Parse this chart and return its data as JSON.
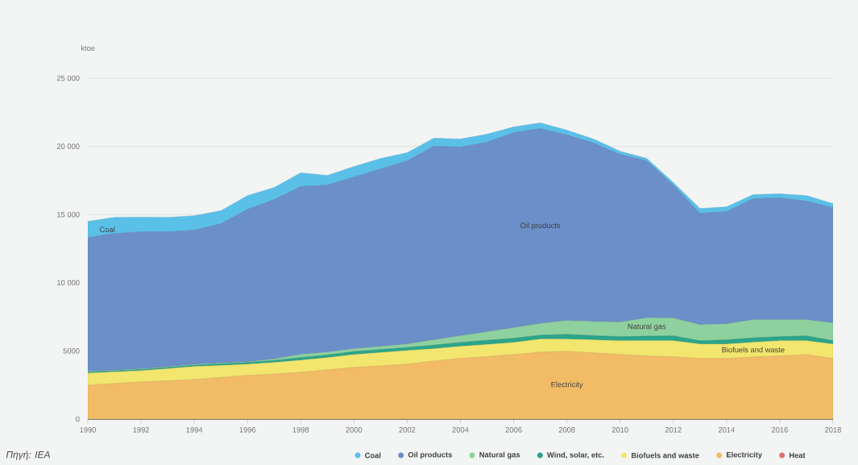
{
  "chart_data": {
    "type": "area",
    "stacked": true,
    "ylabel": "ktoe",
    "x": [
      1990,
      1991,
      1992,
      1993,
      1994,
      1995,
      1996,
      1997,
      1998,
      1999,
      2000,
      2001,
      2002,
      2003,
      2004,
      2005,
      2006,
      2007,
      2008,
      2009,
      2010,
      2011,
      2012,
      2013,
      2014,
      2015,
      2016,
      2017,
      2018
    ],
    "series": [
      {
        "name": "Heat",
        "color": "#e07070",
        "values": [
          null,
          null,
          null,
          null,
          null,
          null,
          null,
          null,
          null,
          null,
          null,
          null,
          null,
          null,
          null,
          null,
          null,
          null,
          null,
          null,
          null,
          null,
          null,
          null,
          null,
          null,
          null,
          null,
          null
        ]
      },
      {
        "name": "Electricity",
        "color": "#f2bb66",
        "values": [
          2480,
          2600,
          2720,
          2800,
          2900,
          3050,
          3200,
          3300,
          3430,
          3600,
          3790,
          3900,
          4020,
          4260,
          4440,
          4580,
          4730,
          4900,
          4970,
          4850,
          4730,
          4620,
          4560,
          4440,
          4440,
          4550,
          4620,
          4730,
          4440
        ]
      },
      {
        "name": "Biofuels and waste",
        "color": "#f2e66e",
        "values": [
          890,
          850,
          830,
          900,
          950,
          880,
          820,
          850,
          890,
          900,
          940,
          980,
          1010,
          890,
          890,
          890,
          890,
          960,
          890,
          950,
          1010,
          1130,
          1180,
          1060,
          1060,
          1080,
          1120,
          1010,
          1060
        ]
      },
      {
        "name": "Wind, solar, etc.",
        "color": "#2aa58a",
        "values": [
          80,
          80,
          80,
          80,
          100,
          120,
          130,
          150,
          190,
          200,
          220,
          220,
          220,
          270,
          290,
          300,
          300,
          290,
          350,
          320,
          300,
          330,
          360,
          240,
          300,
          330,
          300,
          360,
          240
        ]
      },
      {
        "name": "Natural gas",
        "color": "#8fd19e",
        "values": [
          50,
          50,
          50,
          50,
          50,
          50,
          50,
          100,
          230,
          200,
          200,
          220,
          250,
          390,
          480,
          630,
          770,
          850,
          1010,
          1030,
          1060,
          1330,
          1300,
          1180,
          1180,
          1330,
          1250,
          1180,
          1300
        ]
      },
      {
        "name": "Oil products",
        "color": "#6b8fc8",
        "values": [
          9810,
          10030,
          10050,
          9900,
          9850,
          10220,
          11180,
          11690,
          12310,
          12260,
          12600,
          13020,
          13430,
          14200,
          13840,
          13900,
          14310,
          14300,
          13610,
          13090,
          12310,
          11530,
          9760,
          8170,
          8230,
          8870,
          8930,
          8700,
          8460
        ]
      },
      {
        "name": "Coal",
        "color": "#5bc0e8",
        "values": [
          1190,
          1180,
          1070,
          1060,
          1060,
          950,
          1010,
          890,
          1010,
          710,
          770,
          770,
          600,
          590,
          590,
          590,
          420,
          420,
          350,
          290,
          230,
          180,
          180,
          350,
          350,
          300,
          300,
          410,
          300
        ]
      }
    ],
    "xlim": [
      1990,
      2018
    ],
    "xticks": [
      1990,
      1992,
      1994,
      1996,
      1998,
      2000,
      2002,
      2004,
      2006,
      2008,
      2010,
      2012,
      2014,
      2016,
      2018
    ],
    "ylim": [
      0,
      25000
    ],
    "yticks": [
      0,
      5000,
      {
        "value": 10000,
        "label": "10 000"
      },
      {
        "value": 15000,
        "label": "15 000"
      },
      {
        "value": 20000,
        "label": "20 000"
      },
      {
        "value": 25000,
        "label": "25 000"
      }
    ],
    "grid": "y",
    "legend": "bottom",
    "annotations": [
      "Πηγή: IEA"
    ]
  }
}
